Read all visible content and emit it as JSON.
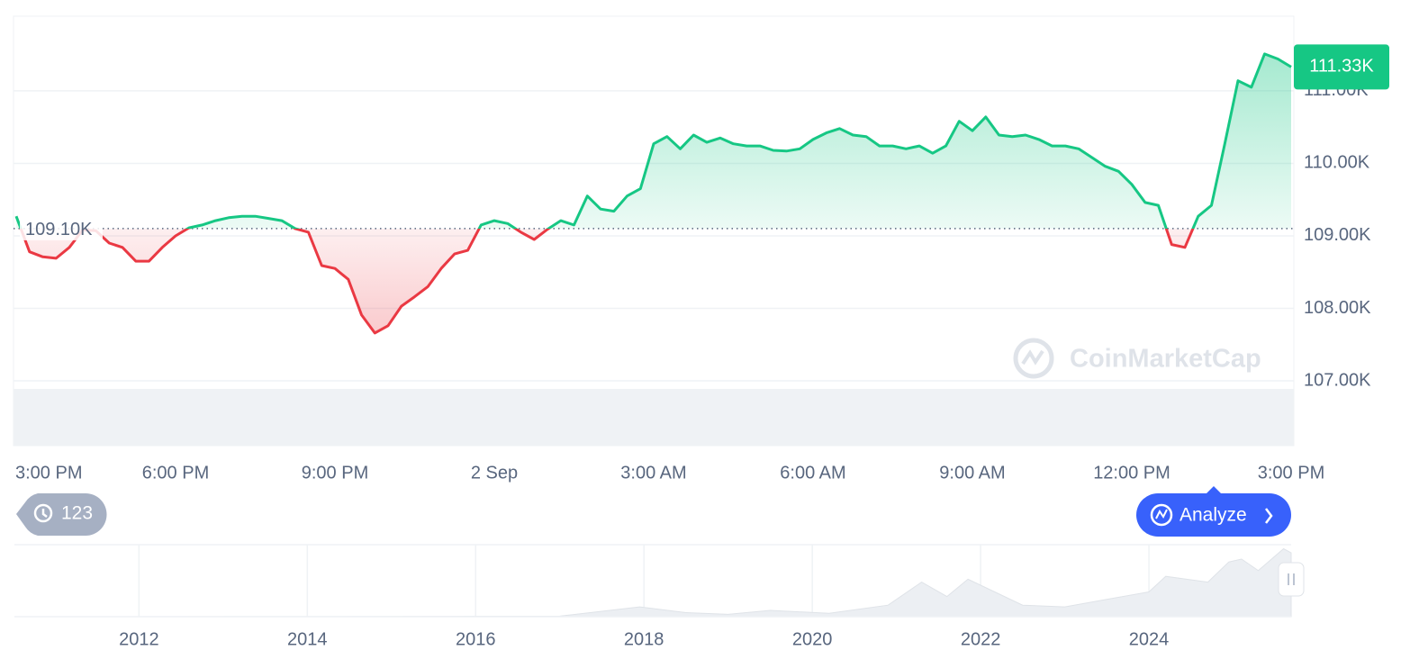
{
  "chart_data": [
    {
      "type": "line",
      "categories": [
        "3:00 PM",
        null,
        null,
        null,
        null,
        null,
        null,
        null,
        null,
        null,
        null,
        null,
        "6:00 PM",
        null,
        null,
        null,
        null,
        null,
        null,
        null,
        null,
        null,
        null,
        null,
        "9:00 PM",
        null,
        null,
        null,
        null,
        null,
        null,
        null,
        null,
        null,
        null,
        null,
        "2 Sep",
        null,
        null,
        null,
        null,
        null,
        null,
        null,
        null,
        null,
        null,
        null,
        "3:00 AM",
        null,
        null,
        null,
        null,
        null,
        null,
        null,
        null,
        null,
        null,
        null,
        "6:00 AM",
        null,
        null,
        null,
        null,
        null,
        null,
        null,
        null,
        null,
        null,
        null,
        "9:00 AM",
        null,
        null,
        null,
        null,
        null,
        null,
        null,
        null,
        null,
        null,
        null,
        "12:00 PM",
        null,
        null,
        null,
        null,
        null,
        null,
        null,
        null,
        null,
        null,
        null,
        "3:00 PM"
      ],
      "series": [
        {
          "color_up": "#16c784",
          "color_down": "#ea3943",
          "values": [
            109270,
            108780,
            108710,
            108690,
            108840,
            109080,
            109070,
            108900,
            108840,
            108650,
            108650,
            108840,
            109000,
            109110,
            109150,
            109210,
            109250,
            109270,
            109270,
            109240,
            109210,
            109100,
            109050,
            108590,
            108550,
            108400,
            107910,
            107660,
            107760,
            108030,
            108160,
            108300,
            108550,
            108750,
            108800,
            109150,
            109210,
            109170,
            109050,
            108950,
            109090,
            109210,
            109150,
            109550,
            109370,
            109340,
            109550,
            109650,
            110270,
            110370,
            110200,
            110390,
            110290,
            110350,
            110270,
            110240,
            110240,
            110180,
            110170,
            110200,
            110330,
            110420,
            110480,
            110390,
            110370,
            110240,
            110240,
            110200,
            110240,
            110140,
            110240,
            110580,
            110450,
            110640,
            110390,
            110370,
            110390,
            110330,
            110240,
            110240,
            110200,
            110080,
            109960,
            109890,
            109710,
            109460,
            109420,
            108880,
            108840,
            109270,
            109420,
            110270,
            111140,
            111050,
            111510,
            111440,
            111330
          ]
        }
      ],
      "baseline": {
        "value": 109100,
        "label": "109.10K"
      },
      "price_tag": {
        "value": 111330,
        "label": "111.33K"
      },
      "ylim": [
        107000,
        112030
      ],
      "yticks": [
        {
          "value": 107000,
          "label": "107.00K"
        },
        {
          "value": 108000,
          "label": "108.00K"
        },
        {
          "value": 109000,
          "label": "109.00K"
        },
        {
          "value": 110000,
          "label": "110.00K"
        },
        {
          "value": 111000,
          "label": "111.00K"
        }
      ],
      "grid": true
    },
    {
      "type": "area",
      "color": "#eceff3",
      "x": [
        2010.52,
        2015,
        2017,
        2017.95,
        2018.5,
        2019,
        2019.5,
        2020.2,
        2020.9,
        2021.3,
        2021.6,
        2021.85,
        2022.5,
        2023,
        2023.5,
        2024,
        2024.2,
        2024.7,
        2024.95,
        2025.1,
        2025.3,
        2025.6,
        2025.69
      ],
      "values": [
        0,
        0.3,
        1,
        17,
        7,
        4,
        11,
        6,
        20,
        60,
        35,
        65,
        20,
        17,
        30,
        43,
        70,
        60,
        95,
        100,
        80,
        118,
        111
      ],
      "xlim": [
        2010.52,
        2025.69
      ],
      "ylim": [
        0,
        125
      ],
      "xticks": [
        2012,
        2014,
        2016,
        2018,
        2020,
        2022,
        2024
      ],
      "grid": true
    }
  ],
  "ui": {
    "badge": "123",
    "analyze": "Analyze",
    "watermark": "CoinMarketCap"
  }
}
